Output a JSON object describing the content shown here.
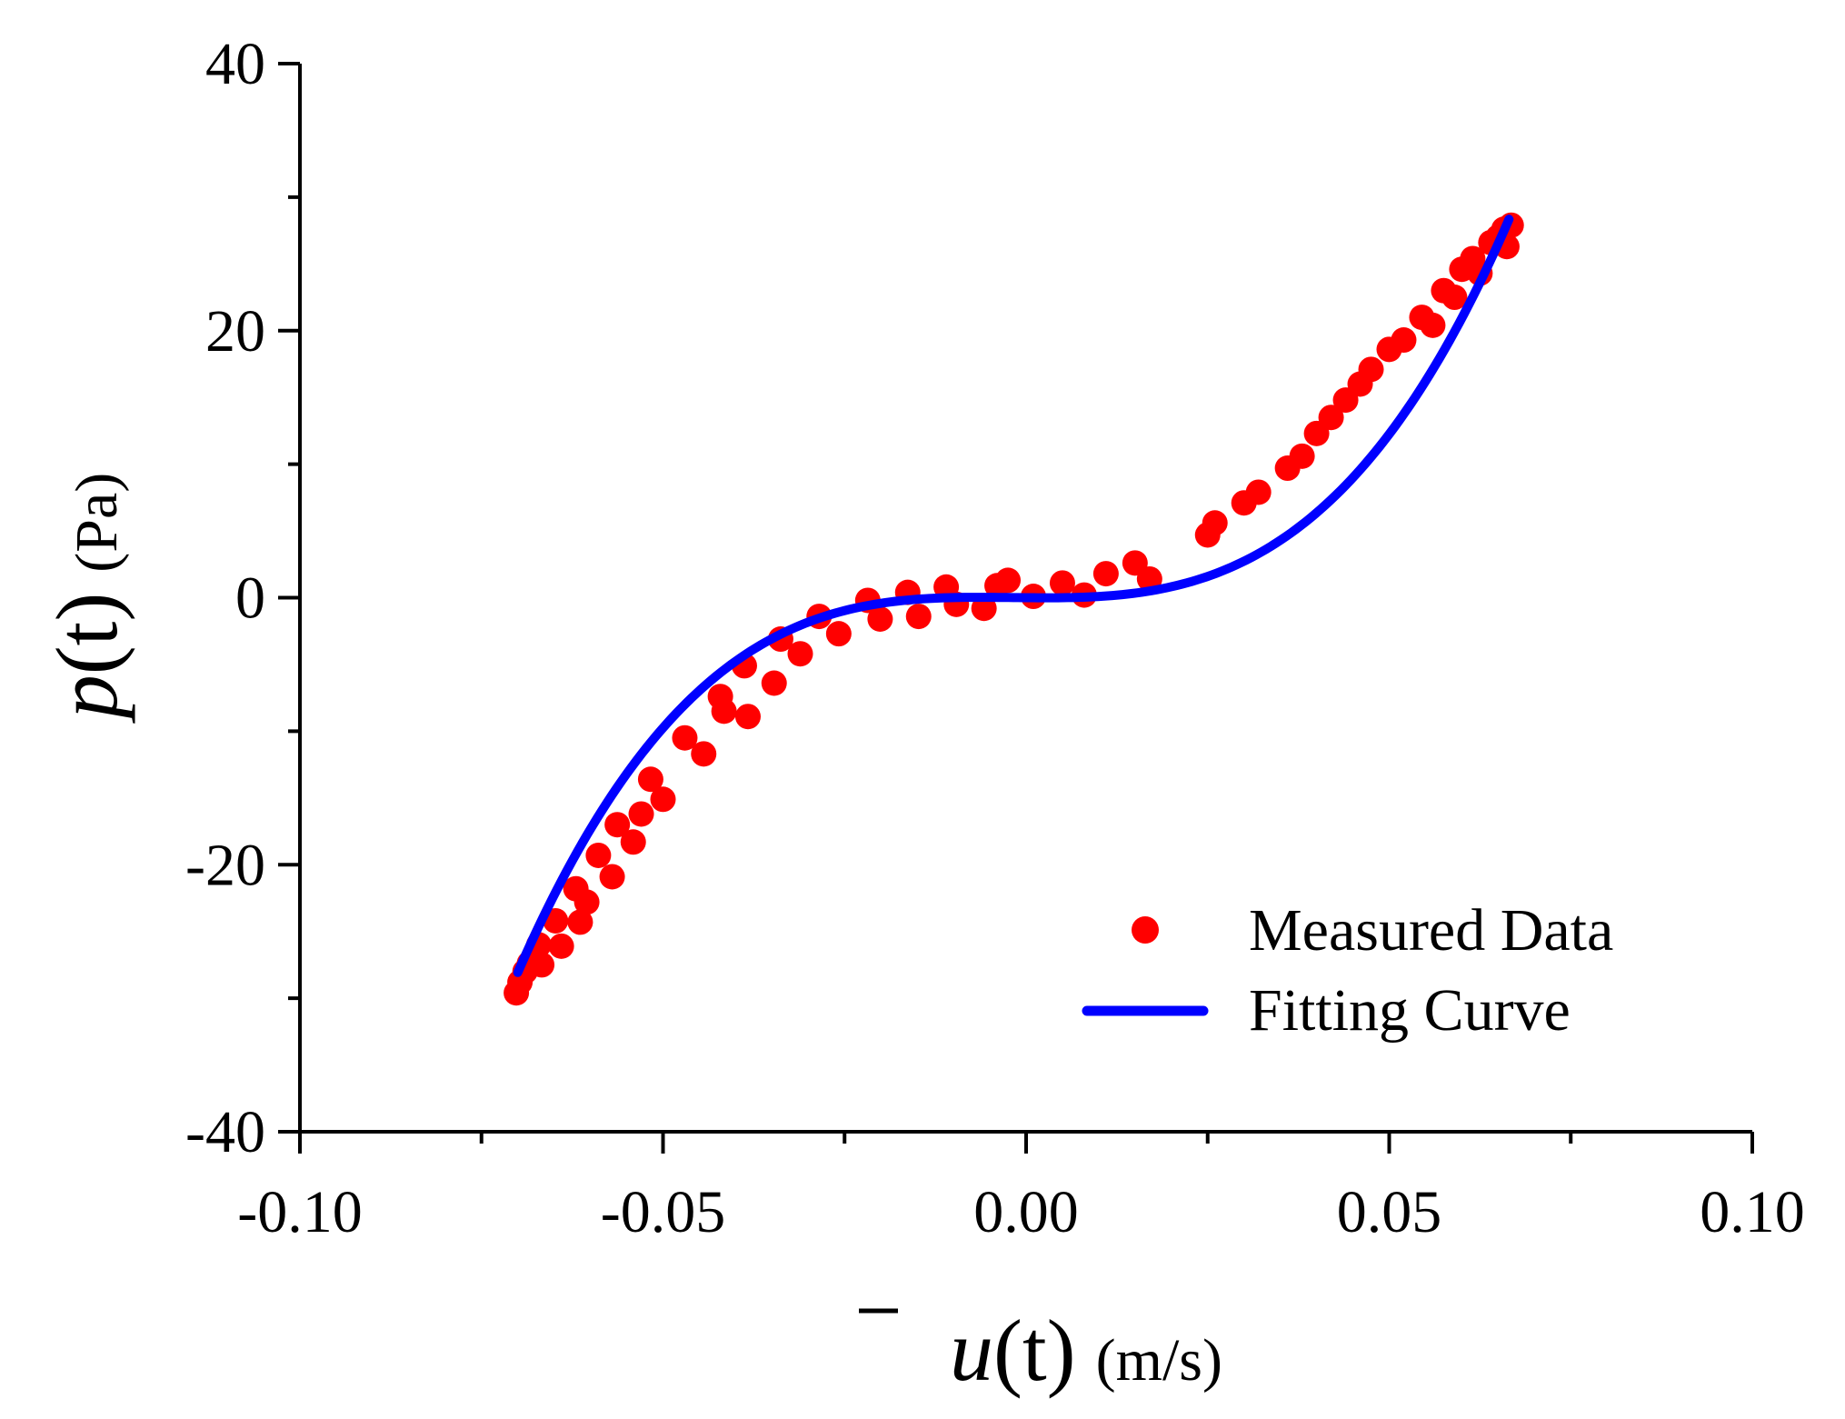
{
  "chart_data": {
    "type": "scatter",
    "title": "",
    "xlabel": {
      "symbol": "u",
      "arg": "(t)",
      "unit": "(m/s)"
    },
    "ylabel": {
      "symbol": "p",
      "arg": "(t)",
      "unit": "(Pa)"
    },
    "xlim": [
      -0.1,
      0.1
    ],
    "ylim": [
      -40,
      40
    ],
    "x_ticks": [
      -0.1,
      -0.05,
      0.0,
      0.05,
      0.1
    ],
    "x_tick_labels": [
      "-0.10",
      "-0.05",
      "0.00",
      "0.05",
      "0.10"
    ],
    "x_minor_ticks": [
      -0.075,
      -0.025,
      0.025,
      0.075
    ],
    "y_ticks": [
      -40,
      -20,
      0,
      20,
      40
    ],
    "y_tick_labels": [
      "-40",
      "-20",
      "0",
      "20",
      "40"
    ],
    "y_minor_ticks": [
      -30,
      -10,
      10,
      30
    ],
    "legend_position": "bottom-right",
    "series": [
      {
        "name": "Measured Data",
        "kind": "scatter",
        "color": "#ff0000",
        "points": [
          [
            -0.0702,
            -29.6
          ],
          [
            -0.0697,
            -28.8
          ],
          [
            -0.069,
            -28.0
          ],
          [
            -0.0684,
            -27.4
          ],
          [
            -0.0671,
            -26.0
          ],
          [
            -0.0667,
            -27.5
          ],
          [
            -0.0648,
            -24.2
          ],
          [
            -0.064,
            -26.1
          ],
          [
            -0.062,
            -21.8
          ],
          [
            -0.0614,
            -24.3
          ],
          [
            -0.0605,
            -22.8
          ],
          [
            -0.0589,
            -19.3
          ],
          [
            -0.057,
            -20.9
          ],
          [
            -0.0563,
            -17.0
          ],
          [
            -0.0541,
            -18.3
          ],
          [
            -0.053,
            -16.2
          ],
          [
            -0.0517,
            -13.6
          ],
          [
            -0.05,
            -15.1
          ],
          [
            -0.047,
            -10.5
          ],
          [
            -0.0444,
            -11.7
          ],
          [
            -0.0421,
            -7.4
          ],
          [
            -0.0416,
            -8.5
          ],
          [
            -0.0388,
            -5.1
          ],
          [
            -0.0383,
            -8.9
          ],
          [
            -0.0347,
            -6.4
          ],
          [
            -0.0338,
            -3.1
          ],
          [
            -0.0311,
            -4.2
          ],
          [
            -0.0285,
            -1.4
          ],
          [
            -0.0258,
            -2.7
          ],
          [
            -0.0218,
            -0.2
          ],
          [
            -0.0201,
            -1.6
          ],
          [
            -0.0163,
            0.4
          ],
          [
            -0.0148,
            -1.4
          ],
          [
            -0.011,
            0.8
          ],
          [
            -0.0096,
            -0.5
          ],
          [
            -0.0058,
            -0.8
          ],
          [
            -0.004,
            0.9
          ],
          [
            -0.0025,
            1.3
          ],
          [
            0.001,
            0.1
          ],
          [
            0.005,
            1.1
          ],
          [
            0.008,
            0.2
          ],
          [
            0.011,
            1.8
          ],
          [
            0.015,
            2.6
          ],
          [
            0.017,
            1.4
          ],
          [
            0.025,
            4.7
          ],
          [
            0.026,
            5.6
          ],
          [
            0.03,
            7.1
          ],
          [
            0.032,
            7.9
          ],
          [
            0.036,
            9.7
          ],
          [
            0.038,
            10.6
          ],
          [
            0.04,
            12.3
          ],
          [
            0.042,
            13.5
          ],
          [
            0.044,
            14.8
          ],
          [
            0.046,
            16.0
          ],
          [
            0.0475,
            17.1
          ],
          [
            0.05,
            18.6
          ],
          [
            0.052,
            19.3
          ],
          [
            0.0545,
            21.0
          ],
          [
            0.056,
            20.4
          ],
          [
            0.0575,
            23.0
          ],
          [
            0.059,
            22.5
          ],
          [
            0.06,
            24.6
          ],
          [
            0.0615,
            25.4
          ],
          [
            0.0625,
            24.3
          ],
          [
            0.064,
            26.6
          ],
          [
            0.065,
            27.0
          ],
          [
            0.0658,
            27.6
          ],
          [
            0.0662,
            26.3
          ],
          [
            0.0668,
            27.9
          ]
        ]
      },
      {
        "name": "Fitting Curve",
        "kind": "line",
        "color": "#0000ff",
        "x_range": [
          -0.07,
          0.0665
        ],
        "coefficients_cubic": {
          "a3": 90000,
          "a2": 500,
          "a1": -5,
          "a0": 0
        }
      }
    ]
  }
}
